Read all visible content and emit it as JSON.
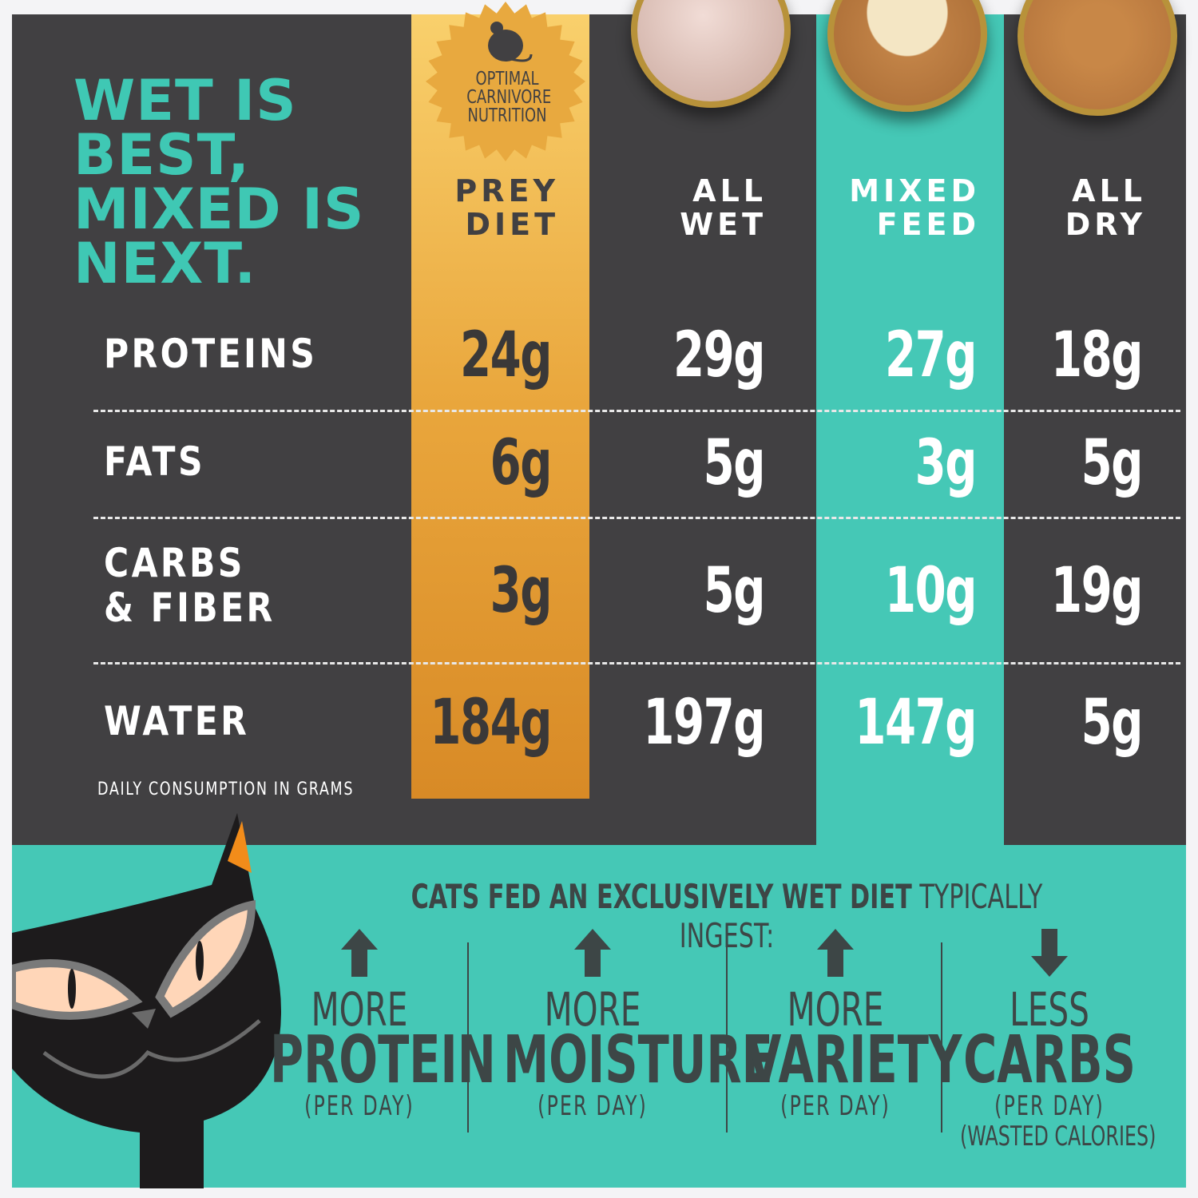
{
  "title": [
    "WET IS",
    "BEST,",
    "MIXED IS",
    "NEXT."
  ],
  "badge": {
    "lines": [
      "OPTIMAL",
      "CARNIVORE",
      "NUTRITION"
    ],
    "icon": "mouse-icon"
  },
  "columns": [
    {
      "label": [
        "PREY",
        "DIET"
      ]
    },
    {
      "label": [
        "ALL",
        "WET"
      ]
    },
    {
      "label": [
        "MIXED",
        "FEED"
      ]
    },
    {
      "label": [
        "ALL",
        "DRY"
      ]
    }
  ],
  "rows": [
    {
      "label": [
        "PROTEINS"
      ],
      "values": [
        "24g",
        "29g",
        "27g",
        "18g"
      ]
    },
    {
      "label": [
        "FATS"
      ],
      "values": [
        "6g",
        "5g",
        "3g",
        "5g"
      ]
    },
    {
      "label": [
        "CARBS",
        "& FIBER"
      ],
      "values": [
        "3g",
        "5g",
        "10g",
        "19g"
      ]
    },
    {
      "label": [
        "WATER"
      ],
      "values": [
        "184g",
        "197g",
        "147g",
        "5g"
      ]
    }
  ],
  "footnote": "DAILY CONSUMPTION IN GRAMS",
  "bottom": {
    "heading_bold": "CATS FED AN EXCLUSIVELY WET DIET",
    "heading_rest": " TYPICALLY INGEST:",
    "items": [
      {
        "arrow": "arrow-up-icon",
        "small": "MORE",
        "big": "PROTEIN",
        "sub": "(PER DAY)",
        "sub2": ""
      },
      {
        "arrow": "arrow-up-icon",
        "small": "MORE",
        "big": "MOISTURE",
        "sub": "(PER DAY)",
        "sub2": ""
      },
      {
        "arrow": "arrow-up-icon",
        "small": "MORE",
        "big": "VARIETY",
        "sub": "(PER DAY)",
        "sub2": ""
      },
      {
        "arrow": "arrow-down-icon",
        "small": "LESS",
        "big": "CARBS",
        "sub": "(PER DAY)",
        "sub2": "(WASTED CALORIES)"
      }
    ]
  },
  "colors": {
    "dark": "#414042",
    "teal": "#45c8b6",
    "gold": "#e9a63c",
    "title": "#3fc8b4"
  }
}
